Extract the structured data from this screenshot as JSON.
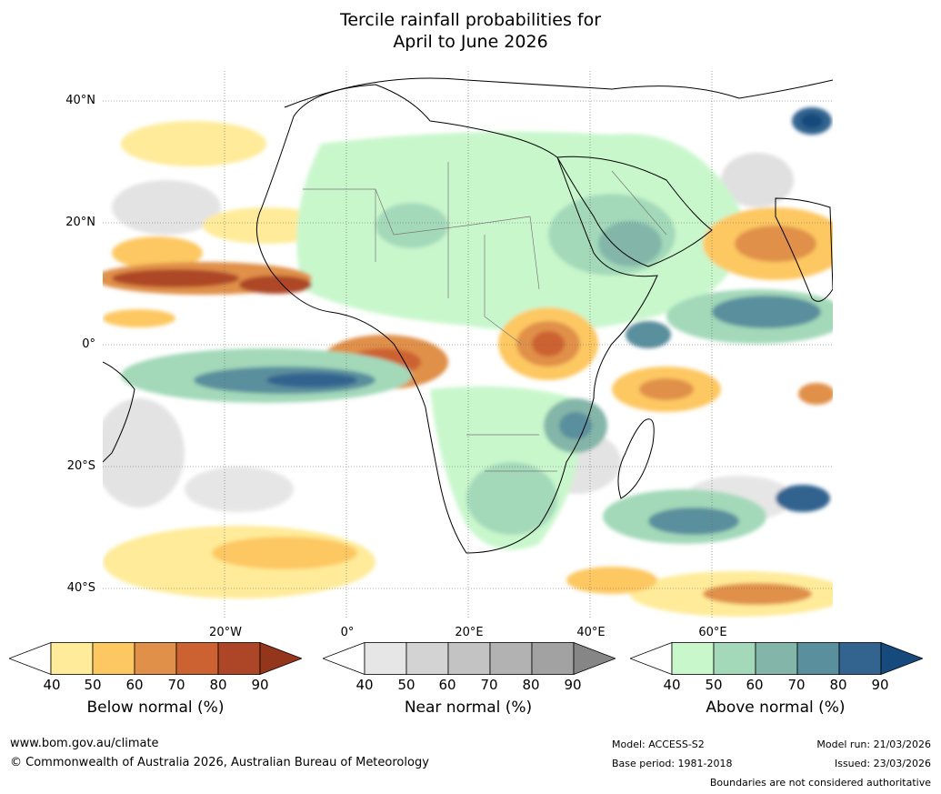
{
  "title": {
    "line1": "Tercile rainfall probabilities for",
    "line2": "April to June 2026"
  },
  "map": {
    "lat_labels": [
      "40°N",
      "20°N",
      "0°",
      "20°S",
      "40°S"
    ],
    "lon_labels": [
      "20°W",
      "0°",
      "20°E",
      "40°E",
      "60°E"
    ],
    "grid": true
  },
  "colorbars": [
    {
      "title": "Below normal (%)",
      "ticks": [
        "40",
        "50",
        "60",
        "70",
        "80",
        "90"
      ],
      "colors": [
        "#ffffff",
        "#ffeb99",
        "#fdc862",
        "#e09048",
        "#cc6232",
        "#ad4626",
        "#94361c"
      ]
    },
    {
      "title": "Near normal (%)",
      "ticks": [
        "40",
        "50",
        "60",
        "70",
        "80",
        "90"
      ],
      "colors": [
        "#ffffff",
        "#e6e6e6",
        "#d3d3d3",
        "#c3c3c3",
        "#b2b2b2",
        "#a2a2a2",
        "#868686"
      ]
    },
    {
      "title": "Above normal (%)",
      "ticks": [
        "40",
        "50",
        "60",
        "70",
        "80",
        "90"
      ],
      "colors": [
        "#ffffff",
        "#c9f7cc",
        "#a3d9b9",
        "#83b6a8",
        "#5a8f9d",
        "#33638f",
        "#174a7c"
      ]
    }
  ],
  "footer": {
    "website": "www.bom.gov.au/climate",
    "copyright": "© Commonwealth of Australia 2026, Australian Bureau of Meteorology",
    "model": "Model: ACCESS-S2",
    "base_period": "Base period: 1981-2018",
    "model_run": "Model run: 21/03/2026",
    "issued": "Issued: 23/03/2026",
    "disclaimer": "Boundaries are not considered authoritative"
  }
}
